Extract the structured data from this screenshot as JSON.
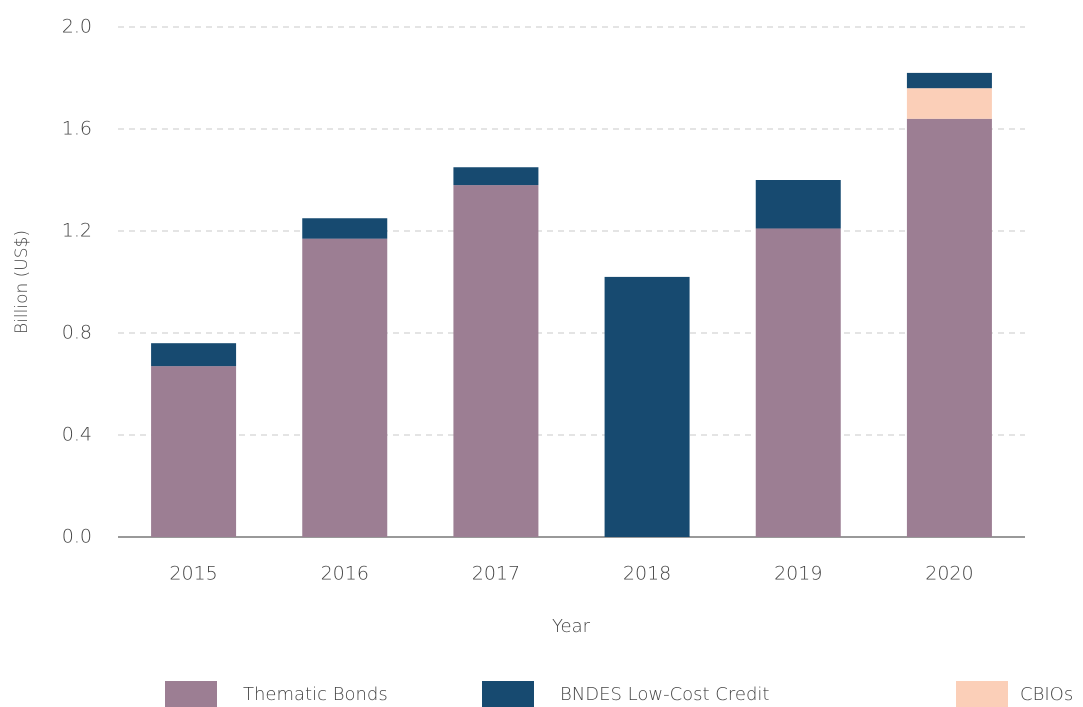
{
  "chart_data": {
    "type": "stacked_bar",
    "y_label": "Billion (US$)",
    "x_label": "Year",
    "categories": [
      "2015",
      "2016",
      "2017",
      "2018",
      "2019",
      "2020"
    ],
    "series": [
      {
        "name": "Thematic Bonds",
        "color": "#9c7e93",
        "values": [
          0.67,
          1.17,
          1.38,
          0,
          1.21,
          1.64
        ]
      },
      {
        "name": "BNDES Low-Cost Credit",
        "color": "#174a70",
        "values": [
          0.09,
          0.08,
          0.07,
          1.02,
          0.19,
          0.06
        ]
      },
      {
        "name": "CBIOs",
        "color": "#fbcfb8",
        "values": [
          0,
          0,
          0,
          0,
          0,
          0.12
        ]
      }
    ],
    "ylim": [
      0,
      2.0
    ],
    "yticks": [
      {
        "value": 0,
        "label": "0.0"
      },
      {
        "value": 0.4,
        "label": "0.4"
      },
      {
        "value": 0.8,
        "label": "0.8"
      },
      {
        "value": 1.2,
        "label": "1.2"
      },
      {
        "value": 1.6,
        "label": "1.6"
      },
      {
        "value": 2.0,
        "label": "2.0"
      }
    ],
    "grid": true
  }
}
